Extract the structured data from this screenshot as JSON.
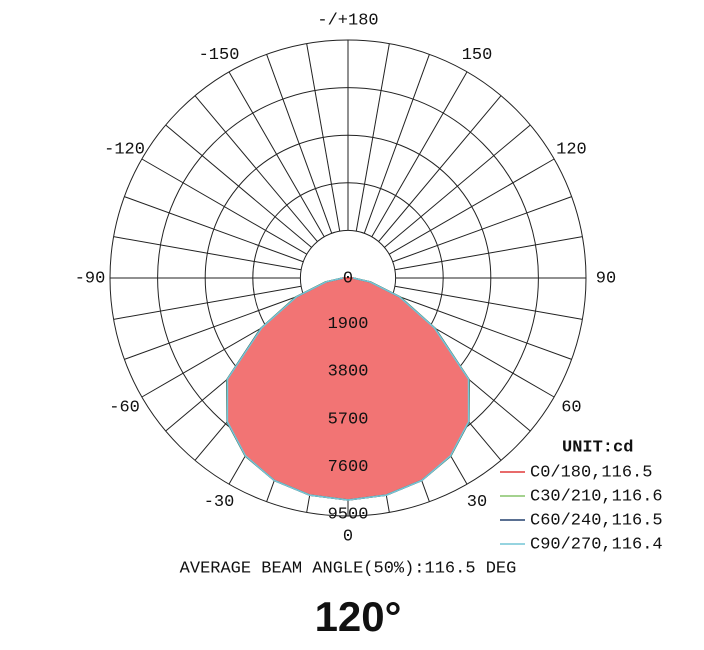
{
  "chart_data": {
    "type": "polar",
    "angles": [
      -90,
      -80,
      -70,
      -60,
      -50,
      -40,
      -30,
      -20,
      -10,
      0,
      10,
      20,
      30,
      40,
      50,
      60,
      70,
      80,
      90
    ],
    "series": [
      {
        "name": "C0/180,116.5",
        "color": "#e03a3a",
        "fill": "#f27474",
        "values": [
          200,
          900,
          2200,
          4000,
          6300,
          7500,
          8200,
          8600,
          8800,
          8860,
          8800,
          8600,
          8200,
          7500,
          6300,
          4000,
          2200,
          900,
          200
        ]
      },
      {
        "name": "C30/210,116.6",
        "color": "#86c46a",
        "values": [
          210,
          920,
          2230,
          4030,
          6320,
          7510,
          8210,
          8600,
          8800,
          8860,
          8800,
          8600,
          8210,
          7510,
          6320,
          4030,
          2230,
          920,
          210
        ]
      },
      {
        "name": "C60/240,116.5",
        "color": "#23406e",
        "values": [
          200,
          900,
          2200,
          4010,
          6300,
          7500,
          8200,
          8600,
          8800,
          8860,
          8800,
          8600,
          8200,
          7500,
          6300,
          4010,
          2200,
          900,
          200
        ]
      },
      {
        "name": "C90/270,116.4",
        "color": "#74c6d6",
        "values": [
          190,
          880,
          2180,
          3980,
          6280,
          7490,
          8190,
          8600,
          8800,
          8860,
          8800,
          8600,
          8190,
          7490,
          6280,
          3980,
          2180,
          880,
          190
        ]
      }
    ],
    "rlim": [
      0,
      9500
    ],
    "rticks": [
      0,
      1900,
      3800,
      5700,
      7600,
      9500
    ],
    "thetaticks": [
      {
        "value": 180,
        "label": "-/+180"
      },
      -150,
      150,
      -120,
      120,
      -90,
      90,
      -60,
      60,
      -30,
      30,
      0
    ],
    "theta_grid_step": 10,
    "legend_title": "UNIT:cd",
    "annotation": "AVERAGE BEAM ANGLE(50%):116.5 DEG",
    "subtitle": "120°"
  }
}
